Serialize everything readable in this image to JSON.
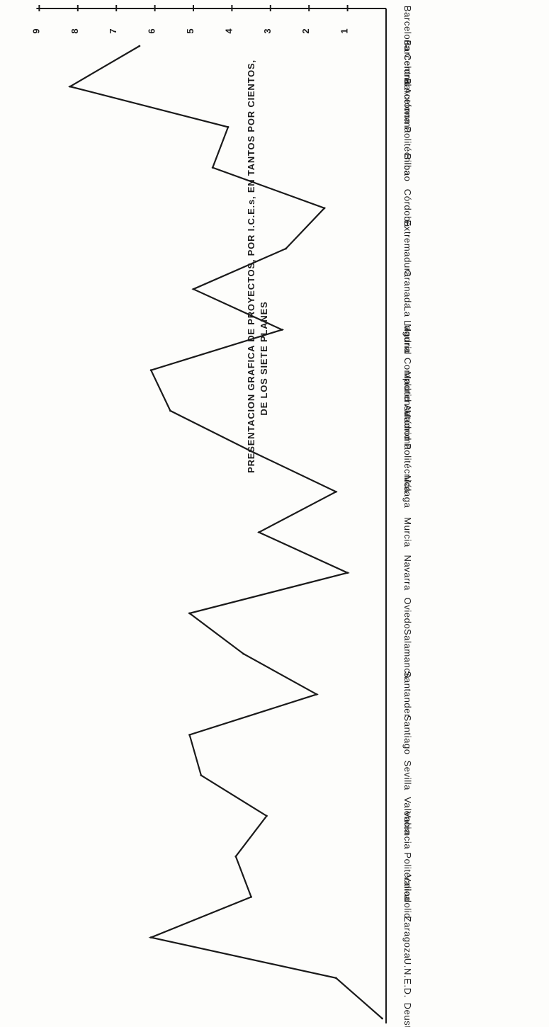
{
  "chart_data": {
    "type": "line",
    "title": "PRESENTACION GRAFICA DE PROYECTOS, POR I.C.E.s, EN TANTOS POR CIENTOS,",
    "subtitle": "DE LOS SIETE PLANES",
    "xlabel": "",
    "ylabel": "",
    "orientation": "rotated-180",
    "ylim": [
      0,
      9
    ],
    "yticks": [
      "1",
      "2",
      "3",
      "4",
      "5",
      "6",
      "7",
      "8",
      "9"
    ],
    "grid": false,
    "categories": [
      "Barcelona Central",
      "Barcelona Autónoma",
      "Barcelona Politécnica",
      "Bilbao",
      "Córdoba",
      "Extremadura",
      "Granada",
      "La Laguna",
      "Madrid Complutense",
      "Madrid Autónoma",
      "Madrid Politécnica",
      "Málaga",
      "Murcia",
      "Navarra",
      "Oviedo",
      "Salamanca",
      "Santander",
      "Santiago",
      "Sevilla",
      "Valencia",
      "Valencia Politécnica",
      "Valladolid",
      "Zaragoza",
      "U.N.E.D.",
      "Deusto"
    ],
    "values": [
      6.4,
      8.2,
      4.1,
      4.5,
      1.6,
      2.6,
      5.0,
      2.7,
      6.1,
      5.6,
      3.5,
      1.3,
      3.3,
      1.0,
      5.1,
      3.7,
      1.8,
      5.1,
      4.8,
      3.1,
      3.9,
      3.5,
      6.1,
      1.3,
      0.1
    ]
  }
}
